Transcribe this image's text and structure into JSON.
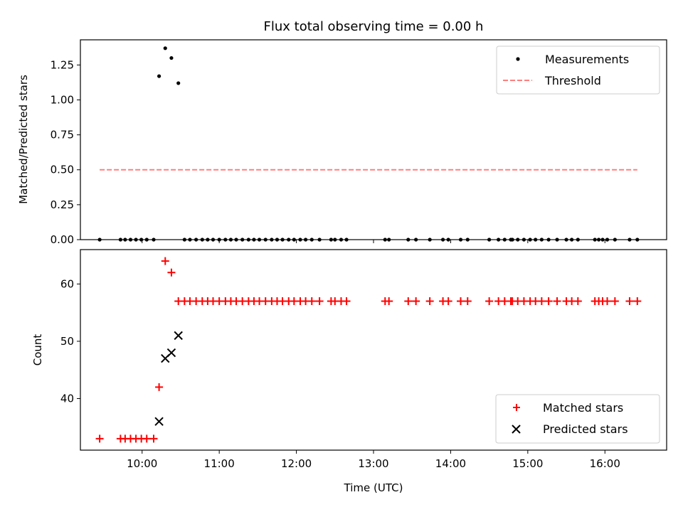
{
  "chart_data": [
    {
      "type": "scatter",
      "title": "Flux total observing time = 0.00 h",
      "xlabel": "",
      "ylabel": "Matched/Predicted stars",
      "ylim": [
        0.0,
        1.43
      ],
      "xlim": [
        9.2,
        16.8
      ],
      "yticks": [
        0.0,
        0.25,
        0.5,
        0.75,
        1.0,
        1.25
      ],
      "ytick_labels": [
        "0.00",
        "0.25",
        "0.50",
        "0.75",
        "1.00",
        "1.25"
      ],
      "legend": {
        "position": "top-right",
        "entries": [
          "Measurements",
          "Threshold"
        ]
      },
      "threshold": {
        "name": "Threshold",
        "value": 0.5,
        "x_start": 9.45,
        "x_end": 16.42,
        "color": "#ff7f7f"
      },
      "series": [
        {
          "name": "Measurements",
          "color": "#000000",
          "x": [
            9.45,
            9.72,
            9.78,
            9.85,
            9.92,
            9.99,
            10.06,
            10.15,
            10.22,
            10.3,
            10.38,
            10.47,
            10.55,
            10.62,
            10.7,
            10.78,
            10.85,
            10.92,
            11.0,
            11.08,
            11.15,
            11.22,
            11.3,
            11.38,
            11.45,
            11.52,
            11.6,
            11.68,
            11.75,
            11.82,
            11.9,
            11.97,
            12.05,
            12.12,
            12.2,
            12.3,
            12.45,
            12.5,
            12.58,
            12.65,
            13.15,
            13.2,
            13.45,
            13.55,
            13.73,
            13.9,
            13.97,
            14.13,
            14.22,
            14.5,
            14.62,
            14.7,
            14.78,
            14.8,
            14.87,
            14.95,
            15.03,
            15.1,
            15.18,
            15.27,
            15.38,
            15.5,
            15.57,
            15.65,
            15.87,
            15.92,
            15.97,
            16.03,
            16.13,
            16.32,
            16.42
          ],
          "y": [
            0,
            0,
            0,
            0,
            0,
            0,
            0,
            0,
            1.17,
            1.37,
            1.3,
            1.12,
            0,
            0,
            0,
            0,
            0,
            0,
            0,
            0,
            0,
            0,
            0,
            0,
            0,
            0,
            0,
            0,
            0,
            0,
            0,
            0,
            0,
            0,
            0,
            0,
            0,
            0,
            0,
            0,
            0,
            0,
            0,
            0,
            0,
            0,
            0,
            0,
            0,
            0,
            0,
            0,
            0,
            0,
            0,
            0,
            0,
            0,
            0,
            0,
            0,
            0,
            0,
            0,
            0,
            0,
            0,
            0,
            0,
            0,
            0
          ]
        }
      ]
    },
    {
      "type": "scatter",
      "title": "",
      "xlabel": "Time (UTC)",
      "ylabel": "Count",
      "ylim": [
        31.0,
        66.0
      ],
      "xlim": [
        9.2,
        16.8
      ],
      "yticks": [
        40,
        50,
        60
      ],
      "ytick_labels": [
        "40",
        "50",
        "60"
      ],
      "xticks": [
        10,
        11,
        12,
        13,
        14,
        15,
        16
      ],
      "xtick_labels": [
        "10:00",
        "11:00",
        "12:00",
        "13:00",
        "14:00",
        "15:00",
        "16:00"
      ],
      "legend": {
        "position": "bottom-right",
        "entries": [
          "Matched stars",
          "Predicted stars"
        ]
      },
      "series": [
        {
          "name": "Matched stars",
          "color": "#ff0000",
          "x": [
            9.45,
            9.72,
            9.78,
            9.85,
            9.92,
            9.99,
            10.06,
            10.15,
            10.22,
            10.3,
            10.38,
            10.47,
            10.55,
            10.62,
            10.7,
            10.78,
            10.85,
            10.92,
            11.0,
            11.08,
            11.15,
            11.22,
            11.3,
            11.38,
            11.45,
            11.52,
            11.6,
            11.68,
            11.75,
            11.82,
            11.9,
            11.97,
            12.05,
            12.12,
            12.2,
            12.3,
            12.45,
            12.5,
            12.58,
            12.65,
            13.15,
            13.2,
            13.45,
            13.55,
            13.73,
            13.9,
            13.97,
            14.13,
            14.22,
            14.5,
            14.62,
            14.7,
            14.78,
            14.8,
            14.87,
            14.95,
            15.03,
            15.1,
            15.18,
            15.27,
            15.38,
            15.5,
            15.57,
            15.65,
            15.87,
            15.92,
            15.97,
            16.03,
            16.13,
            16.32,
            16.42
          ],
          "y": [
            33,
            33,
            33,
            33,
            33,
            33,
            33,
            33,
            42,
            64,
            62,
            57,
            57,
            57,
            57,
            57,
            57,
            57,
            57,
            57,
            57,
            57,
            57,
            57,
            57,
            57,
            57,
            57,
            57,
            57,
            57,
            57,
            57,
            57,
            57,
            57,
            57,
            57,
            57,
            57,
            57,
            57,
            57,
            57,
            57,
            57,
            57,
            57,
            57,
            57,
            57,
            57,
            57,
            57,
            57,
            57,
            57,
            57,
            57,
            57,
            57,
            57,
            57,
            57,
            57,
            57,
            57,
            57,
            57,
            57,
            57
          ]
        },
        {
          "name": "Predicted stars",
          "color": "#000000",
          "x": [
            10.22,
            10.3,
            10.38,
            10.47
          ],
          "y": [
            36,
            47,
            48,
            51
          ]
        }
      ]
    }
  ]
}
